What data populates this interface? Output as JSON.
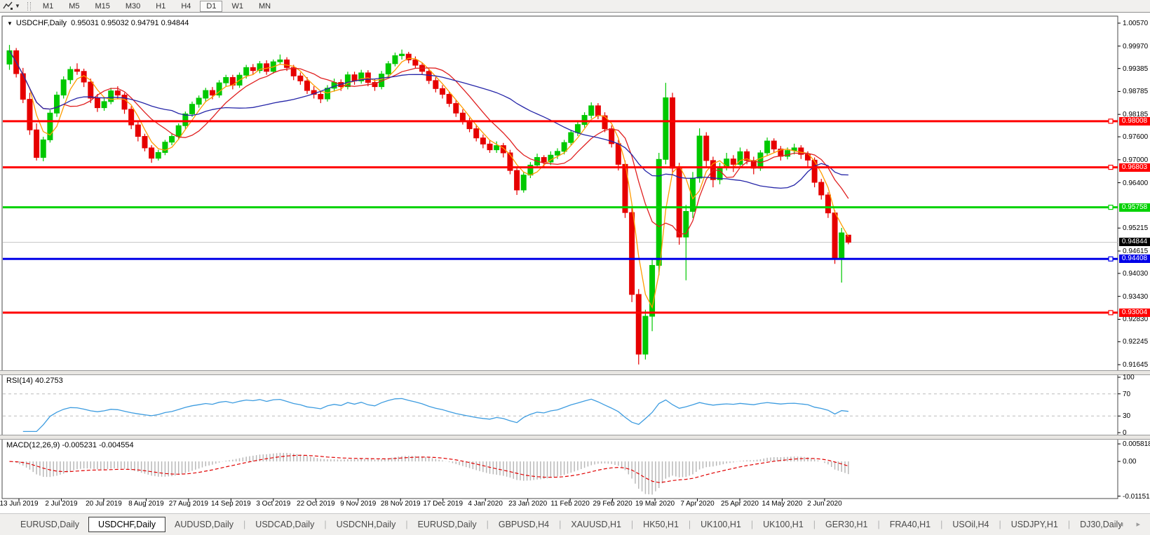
{
  "toolbar": {
    "timeframes": [
      "M1",
      "M5",
      "M15",
      "M30",
      "H1",
      "H4",
      "D1",
      "W1",
      "MN"
    ],
    "active_timeframe": "D1"
  },
  "chart": {
    "title": "USDCHF,Daily",
    "ohlc_text": "0.95031 0.95032 0.94791 0.94844"
  },
  "rsi_panel": {
    "label": "RSI(14) 40.2753",
    "current_value": 40.2753
  },
  "macd_panel": {
    "label": "MACD(12,26,9) -0.005231 -0.004554",
    "current_values": [
      -0.005231,
      -0.004554
    ]
  },
  "chart_data": {
    "type": "candlestick",
    "symbol": "USDCHF",
    "timeframe": "Daily",
    "current_bar": {
      "open": 0.95031,
      "high": 0.95032,
      "low": 0.94791,
      "close": 0.94844
    },
    "price_axis_ticks": [
      "1.00570",
      "0.99970",
      "0.99385",
      "0.98785",
      "0.98185",
      "0.97600",
      "0.97000",
      "0.96400",
      "0.95215",
      "0.94615",
      "0.94030",
      "0.93430",
      "0.92830",
      "0.92245",
      "0.91645"
    ],
    "x_axis_dates": [
      "13 Jun 2019",
      "2 Jul 2019",
      "20 Jul 2019",
      "8 Aug 2019",
      "27 Aug 2019",
      "14 Sep 2019",
      "3 Oct 2019",
      "22 Oct 2019",
      "9 Nov 2019",
      "28 Nov 2019",
      "17 Dec 2019",
      "4 Jan 2020",
      "23 Jan 2020",
      "11 Feb 2020",
      "29 Feb 2020",
      "19 Mar 2020",
      "7 Apr 2020",
      "25 Apr 2020",
      "14 May 2020",
      "2 Jun 2020"
    ],
    "h_lines": [
      {
        "price": 0.98008,
        "label": "0.98008",
        "color": "#ff0000"
      },
      {
        "price": 0.96803,
        "label": "0.96803",
        "color": "#ff0000"
      },
      {
        "price": 0.95758,
        "label": "0.95758",
        "color": "#00d200"
      },
      {
        "price": 0.94408,
        "label": "0.94408",
        "color": "#0000e8"
      },
      {
        "price": 0.93004,
        "label": "0.93004",
        "color": "#ff0000"
      }
    ],
    "current_price": {
      "price": 0.94844,
      "label": "0.94844",
      "line_color": "#c8c8c8",
      "badge_color": "#000000"
    },
    "colors": {
      "up": "#00c800",
      "down": "#e60000",
      "rsi_line": "#3d9ce0",
      "macd_hist": "#b8b8b8",
      "macd_signal": "#e00000"
    },
    "moving_averages": [
      {
        "period": 4,
        "color": "#ff9c00"
      },
      {
        "period": 9,
        "color": "#e02020"
      },
      {
        "period": 25,
        "color": "#2626a8"
      }
    ],
    "rsi": {
      "period": 14,
      "levels": [
        30,
        70
      ],
      "axis_ticks": [
        {
          "v": 100,
          "t": "100"
        },
        {
          "v": 70,
          "t": "70"
        },
        {
          "v": 30,
          "t": "30"
        },
        {
          "v": 0,
          "t": "0"
        }
      ]
    },
    "macd": {
      "fast": 12,
      "slow": 26,
      "signal": 9,
      "axis_ticks": [
        {
          "v": 0.005818,
          "t": "0.005818"
        },
        {
          "v": 0.0,
          "t": "0.00"
        },
        {
          "v": -0.011514,
          "t": "-0.011514"
        }
      ]
    },
    "candles": [
      [
        0.995,
        1.0,
        0.9935,
        0.9985
      ],
      [
        0.9985,
        0.9992,
        0.9915,
        0.9925
      ],
      [
        0.9925,
        0.994,
        0.9848,
        0.9858
      ],
      [
        0.9858,
        0.9875,
        0.9765,
        0.9778
      ],
      [
        0.9778,
        0.9795,
        0.9698,
        0.9706
      ],
      [
        0.9706,
        0.976,
        0.9696,
        0.9752
      ],
      [
        0.9752,
        0.983,
        0.9745,
        0.9822
      ],
      [
        0.9822,
        0.9878,
        0.9812,
        0.9869
      ],
      [
        0.9869,
        0.9918,
        0.986,
        0.9909
      ],
      [
        0.9909,
        0.9944,
        0.9898,
        0.9936
      ],
      [
        0.9936,
        0.9952,
        0.9922,
        0.9931
      ],
      [
        0.9931,
        0.9938,
        0.989,
        0.9903
      ],
      [
        0.9903,
        0.9912,
        0.9848,
        0.9861
      ],
      [
        0.9861,
        0.9872,
        0.9825,
        0.9836
      ],
      [
        0.9836,
        0.986,
        0.9828,
        0.9852
      ],
      [
        0.9852,
        0.9888,
        0.9845,
        0.988
      ],
      [
        0.988,
        0.9892,
        0.9858,
        0.9869
      ],
      [
        0.9869,
        0.9875,
        0.982,
        0.9832
      ],
      [
        0.9832,
        0.984,
        0.978,
        0.9791
      ],
      [
        0.9791,
        0.98,
        0.9748,
        0.9761
      ],
      [
        0.9761,
        0.9768,
        0.9722,
        0.9731
      ],
      [
        0.9731,
        0.9738,
        0.9692,
        0.9704
      ],
      [
        0.9704,
        0.9726,
        0.9698,
        0.9719
      ],
      [
        0.9719,
        0.9752,
        0.9712,
        0.9746
      ],
      [
        0.9746,
        0.9768,
        0.9738,
        0.9761
      ],
      [
        0.9761,
        0.9795,
        0.9752,
        0.9789
      ],
      [
        0.9789,
        0.9826,
        0.9781,
        0.982
      ],
      [
        0.982,
        0.9852,
        0.9812,
        0.9845
      ],
      [
        0.9845,
        0.9868,
        0.9836,
        0.9861
      ],
      [
        0.9861,
        0.9888,
        0.9852,
        0.9881
      ],
      [
        0.9881,
        0.989,
        0.9858,
        0.9869
      ],
      [
        0.9869,
        0.9908,
        0.9862,
        0.9901
      ],
      [
        0.9901,
        0.9922,
        0.9892,
        0.9915
      ],
      [
        0.9915,
        0.9922,
        0.9884,
        0.9895
      ],
      [
        0.9895,
        0.9928,
        0.9888,
        0.9921
      ],
      [
        0.9921,
        0.9948,
        0.9912,
        0.9941
      ],
      [
        0.9941,
        0.995,
        0.9922,
        0.9933
      ],
      [
        0.9933,
        0.9958,
        0.9926,
        0.9951
      ],
      [
        0.9951,
        0.996,
        0.9922,
        0.9931
      ],
      [
        0.9931,
        0.9962,
        0.9925,
        0.9956
      ],
      [
        0.9956,
        0.9975,
        0.9948,
        0.9961
      ],
      [
        0.9961,
        0.9968,
        0.9932,
        0.9941
      ],
      [
        0.9941,
        0.9948,
        0.9908,
        0.9919
      ],
      [
        0.9919,
        0.9928,
        0.9896,
        0.9906
      ],
      [
        0.9906,
        0.9916,
        0.9872,
        0.9881
      ],
      [
        0.9881,
        0.9892,
        0.986,
        0.9871
      ],
      [
        0.9871,
        0.988,
        0.9848,
        0.9859
      ],
      [
        0.9859,
        0.9895,
        0.9852,
        0.9887
      ],
      [
        0.9887,
        0.9912,
        0.9878,
        0.9902
      ],
      [
        0.9902,
        0.991,
        0.988,
        0.9891
      ],
      [
        0.9891,
        0.993,
        0.9884,
        0.9922
      ],
      [
        0.9922,
        0.993,
        0.9896,
        0.9906
      ],
      [
        0.9906,
        0.9935,
        0.9899,
        0.9927
      ],
      [
        0.9927,
        0.9934,
        0.9892,
        0.9902
      ],
      [
        0.9902,
        0.9912,
        0.988,
        0.9891
      ],
      [
        0.9891,
        0.9932,
        0.9884,
        0.9924
      ],
      [
        0.9924,
        0.9958,
        0.9916,
        0.9951
      ],
      [
        0.9951,
        0.998,
        0.9944,
        0.9972
      ],
      [
        0.9972,
        0.9988,
        0.9962,
        0.9976
      ],
      [
        0.9976,
        0.9982,
        0.9952,
        0.9961
      ],
      [
        0.9961,
        0.997,
        0.9938,
        0.9947
      ],
      [
        0.9947,
        0.9954,
        0.9922,
        0.9931
      ],
      [
        0.9931,
        0.9938,
        0.9898,
        0.9907
      ],
      [
        0.9907,
        0.9916,
        0.9876,
        0.9886
      ],
      [
        0.9886,
        0.9895,
        0.986,
        0.9871
      ],
      [
        0.9871,
        0.9878,
        0.9838,
        0.9847
      ],
      [
        0.9847,
        0.9856,
        0.9812,
        0.9822
      ],
      [
        0.9822,
        0.9832,
        0.9792,
        0.9801
      ],
      [
        0.9801,
        0.981,
        0.9772,
        0.9781
      ],
      [
        0.9781,
        0.9792,
        0.9748,
        0.9757
      ],
      [
        0.9757,
        0.9766,
        0.973,
        0.9741
      ],
      [
        0.9741,
        0.9752,
        0.9718,
        0.9726
      ],
      [
        0.9726,
        0.9748,
        0.9718,
        0.9737
      ],
      [
        0.9737,
        0.9744,
        0.9706,
        0.9718
      ],
      [
        0.9718,
        0.9726,
        0.9662,
        0.9672
      ],
      [
        0.9672,
        0.968,
        0.9608,
        0.9621
      ],
      [
        0.9621,
        0.9668,
        0.9614,
        0.966
      ],
      [
        0.966,
        0.9694,
        0.9652,
        0.9686
      ],
      [
        0.9686,
        0.9716,
        0.9678,
        0.9706
      ],
      [
        0.9706,
        0.9712,
        0.9682,
        0.9694
      ],
      [
        0.9694,
        0.9722,
        0.9686,
        0.9712
      ],
      [
        0.9712,
        0.973,
        0.9702,
        0.9722
      ],
      [
        0.9722,
        0.9752,
        0.9714,
        0.9745
      ],
      [
        0.9745,
        0.9778,
        0.9738,
        0.9771
      ],
      [
        0.9771,
        0.98,
        0.9762,
        0.9792
      ],
      [
        0.9792,
        0.9824,
        0.9784,
        0.9816
      ],
      [
        0.9816,
        0.985,
        0.9808,
        0.9841
      ],
      [
        0.9841,
        0.9848,
        0.9806,
        0.9815
      ],
      [
        0.9815,
        0.9824,
        0.9772,
        0.9781
      ],
      [
        0.9781,
        0.979,
        0.9732,
        0.9742
      ],
      [
        0.9742,
        0.9752,
        0.9672,
        0.9688
      ],
      [
        0.9688,
        0.9698,
        0.9548,
        0.9562
      ],
      [
        0.9562,
        0.9575,
        0.9328,
        0.9348
      ],
      [
        0.9348,
        0.9362,
        0.9165,
        0.9192
      ],
      [
        0.9192,
        0.9308,
        0.9178,
        0.9291
      ],
      [
        0.9291,
        0.9442,
        0.9252,
        0.9424
      ],
      [
        0.9424,
        0.9718,
        0.9398,
        0.9701
      ],
      [
        0.9701,
        0.9901,
        0.9688,
        0.9862
      ],
      [
        0.9862,
        0.9875,
        0.9662,
        0.9678
      ],
      [
        0.9678,
        0.9692,
        0.9478,
        0.9498
      ],
      [
        0.9498,
        0.9582,
        0.9385,
        0.9565
      ],
      [
        0.9565,
        0.9668,
        0.9548,
        0.9652
      ],
      [
        0.9652,
        0.9782,
        0.964,
        0.9762
      ],
      [
        0.9762,
        0.9772,
        0.9682,
        0.9698
      ],
      [
        0.9698,
        0.9708,
        0.9628,
        0.9648
      ],
      [
        0.9648,
        0.9692,
        0.9636,
        0.9681
      ],
      [
        0.9681,
        0.9718,
        0.9672,
        0.9702
      ],
      [
        0.9702,
        0.9712,
        0.9668,
        0.9688
      ],
      [
        0.9688,
        0.9732,
        0.968,
        0.9721
      ],
      [
        0.9721,
        0.9728,
        0.9688,
        0.9698
      ],
      [
        0.9698,
        0.9708,
        0.9662,
        0.9678
      ],
      [
        0.9678,
        0.9725,
        0.9671,
        0.9718
      ],
      [
        0.9718,
        0.9758,
        0.971,
        0.9749
      ],
      [
        0.9749,
        0.9756,
        0.9718,
        0.9728
      ],
      [
        0.9728,
        0.9736,
        0.9698,
        0.9709
      ],
      [
        0.9709,
        0.9732,
        0.9701,
        0.9724
      ],
      [
        0.9724,
        0.9742,
        0.9714,
        0.9731
      ],
      [
        0.9731,
        0.9738,
        0.9702,
        0.9714
      ],
      [
        0.9714,
        0.9722,
        0.9682,
        0.9699
      ],
      [
        0.9699,
        0.9706,
        0.9628,
        0.9641
      ],
      [
        0.9641,
        0.965,
        0.9596,
        0.9608
      ],
      [
        0.9608,
        0.9615,
        0.9548,
        0.9561
      ],
      [
        0.9561,
        0.9568,
        0.9428,
        0.9441
      ],
      [
        0.9441,
        0.9522,
        0.9379,
        0.9509
      ],
      [
        0.95031,
        0.95032,
        0.94791,
        0.94844
      ]
    ]
  },
  "tabs": {
    "items": [
      "EURUSD,Daily",
      "USDCHF,Daily",
      "AUDUSD,Daily",
      "USDCAD,Daily",
      "USDCNH,Daily",
      "EURUSD,Daily",
      "GBPUSD,H4",
      "XAUUSD,H1",
      "HK50,H1",
      "UK100,H1",
      "UK100,H1",
      "GER30,H1",
      "FRA40,H1",
      "USOil,H4",
      "USDJPY,H1",
      "DJ30,Daily"
    ],
    "active_index": 1,
    "nav_left": "◂",
    "nav_right": "▸"
  }
}
